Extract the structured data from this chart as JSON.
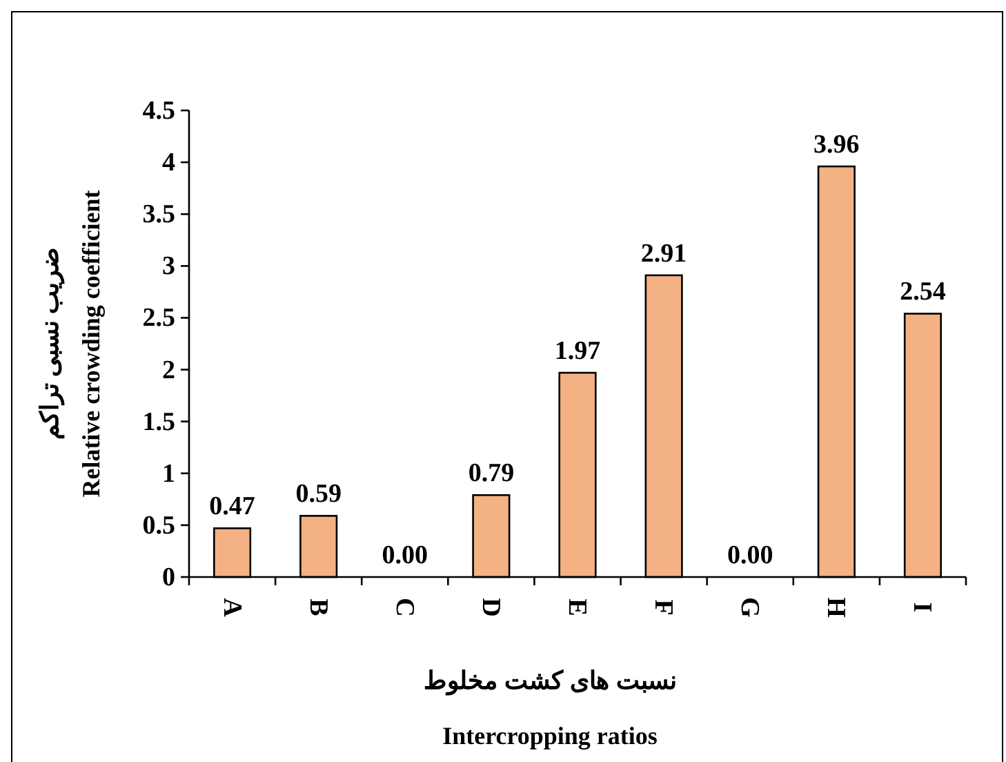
{
  "chart_data": {
    "type": "bar",
    "xlabel": "نسبت های کشت مخلوط\nIntercropping  ratios",
    "ylabel": "ضریب نسبی تراکم\nRelative crowding coefficient",
    "categories": [
      "A",
      "B",
      "C",
      "D",
      "E",
      "F",
      "G",
      "H",
      "I"
    ],
    "values": [
      0.47,
      0.59,
      0,
      0.79,
      1.97,
      2.91,
      0,
      3.96,
      2.54
    ],
    "value_labels": [
      "0.47",
      "0.59",
      "0.00",
      "0.79",
      "1.97",
      "2.91",
      "0.00",
      "3.96",
      "2.54"
    ],
    "color": "#f4b183",
    "ylim": [
      0,
      4.5
    ],
    "yticks": [
      0,
      0.5,
      1,
      1.5,
      2,
      2.5,
      3,
      3.5,
      4,
      4.5
    ]
  }
}
